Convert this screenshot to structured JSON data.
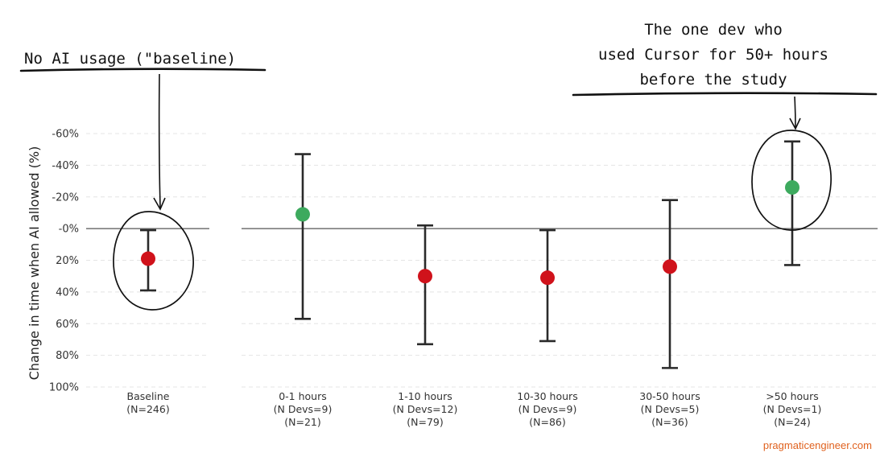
{
  "chart_data": {
    "type": "scatter",
    "subtype": "point-with-error-bars",
    "ylabel": "Change in time when AI allowed (%)",
    "y_axis": {
      "min": -60,
      "max": 100,
      "reversed": true,
      "ticks": [
        -60,
        -40,
        -20,
        0,
        20,
        40,
        60,
        80,
        100
      ],
      "tick_labels": [
        "-60%",
        "-40%",
        "-20%",
        "-0%",
        "20%",
        "40%",
        "60%",
        "80%",
        "100%"
      ]
    },
    "grid": "horizontal dashed",
    "reference_line": 0,
    "categories": [
      {
        "label_lines": [
          "Baseline",
          "(N=246)"
        ],
        "estimate": 19,
        "ci_low": 1,
        "ci_high": 39,
        "color": "#d0121b"
      },
      {
        "label_lines": [
          "0-1 hours",
          "(N Devs=9)",
          "(N=21)"
        ],
        "estimate": -9,
        "ci_low": -47,
        "ci_high": 57,
        "color": "#3daa5e"
      },
      {
        "label_lines": [
          "1-10 hours",
          "(N Devs=12)",
          "(N=79)"
        ],
        "estimate": 30,
        "ci_low": -2,
        "ci_high": 73,
        "color": "#d0121b"
      },
      {
        "label_lines": [
          "10-30 hours",
          "(N Devs=9)",
          "(N=86)"
        ],
        "estimate": 31,
        "ci_low": 1,
        "ci_high": 71,
        "color": "#d0121b"
      },
      {
        "label_lines": [
          "30-50 hours",
          "(N Devs=5)",
          "(N=36)"
        ],
        "estimate": 24,
        "ci_low": -18,
        "ci_high": 88,
        "color": "#d0121b"
      },
      {
        "label_lines": [
          ">50 hours",
          "(N Devs=1)",
          "(N=24)"
        ],
        "estimate": -26,
        "ci_low": -55,
        "ci_high": 23,
        "color": "#3daa5e"
      }
    ],
    "annotations": [
      {
        "text_lines": [
          "No AI usage (\"baseline)"
        ],
        "target": "Baseline"
      },
      {
        "text_lines": [
          "The one dev who",
          "used Cursor for 50+ hours",
          "before the study"
        ],
        "target": ">50 hours"
      }
    ]
  },
  "credit": "pragmaticengineer.com"
}
